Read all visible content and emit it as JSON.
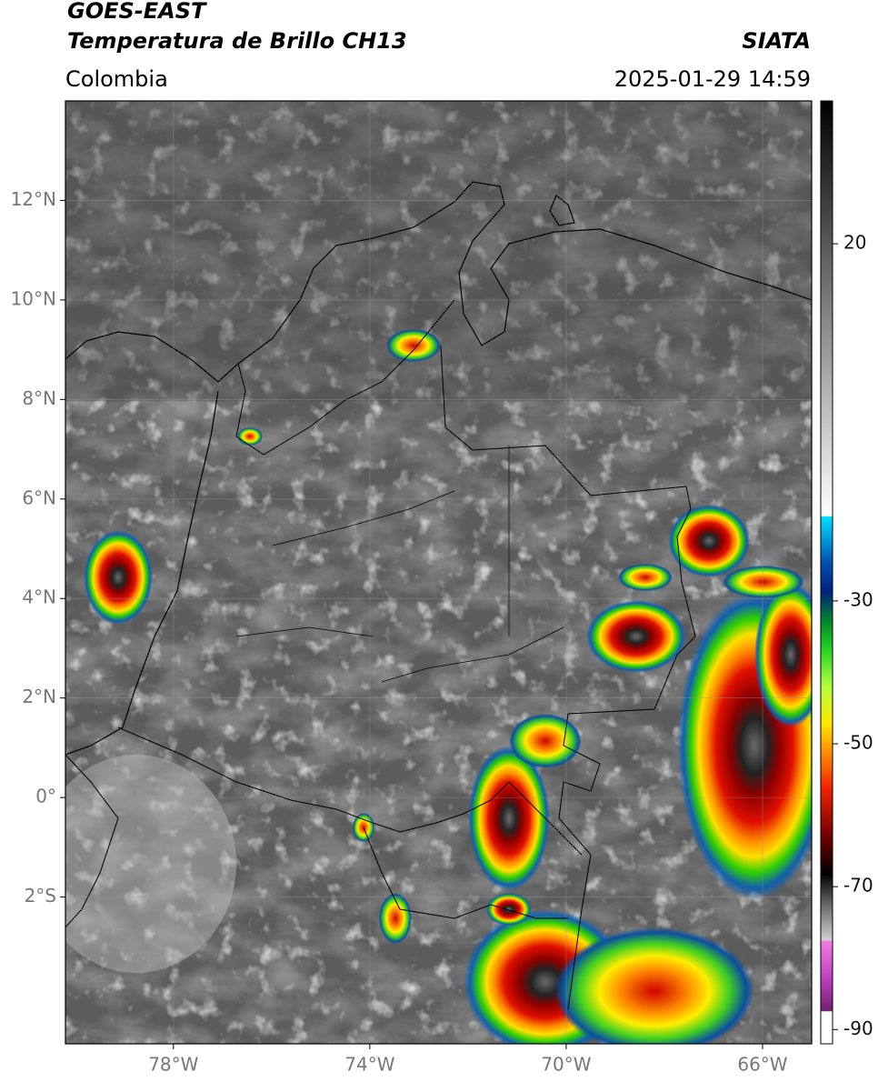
{
  "header": {
    "satellite": "GOES-EAST",
    "product": "Temperatura de Brillo CH13",
    "source": "SIATA",
    "region": "Colombia",
    "datetime": "2025-01-29 14:59"
  },
  "map": {
    "xlim": [
      -80.2,
      -65
    ],
    "ylim": [
      -4.95,
      14
    ],
    "xticks": [
      {
        "value": -78,
        "label": "78°W"
      },
      {
        "value": -74,
        "label": "74°W"
      },
      {
        "value": -70,
        "label": "70°W"
      },
      {
        "value": -66,
        "label": "66°W"
      }
    ],
    "yticks": [
      {
        "value": -2,
        "label": "2°S"
      },
      {
        "value": 0,
        "label": "0°"
      },
      {
        "value": 2,
        "label": "2°N"
      },
      {
        "value": 4,
        "label": "4°N"
      },
      {
        "value": 6,
        "label": "6°N"
      },
      {
        "value": 8,
        "label": "8°N"
      },
      {
        "value": 10,
        "label": "10°N"
      },
      {
        "value": 12,
        "label": "12°N"
      }
    ],
    "grid": true
  },
  "colorbar": {
    "clim": [
      -92,
      40
    ],
    "ticks": [
      20,
      -30,
      -50,
      -70,
      -90
    ]
  }
}
